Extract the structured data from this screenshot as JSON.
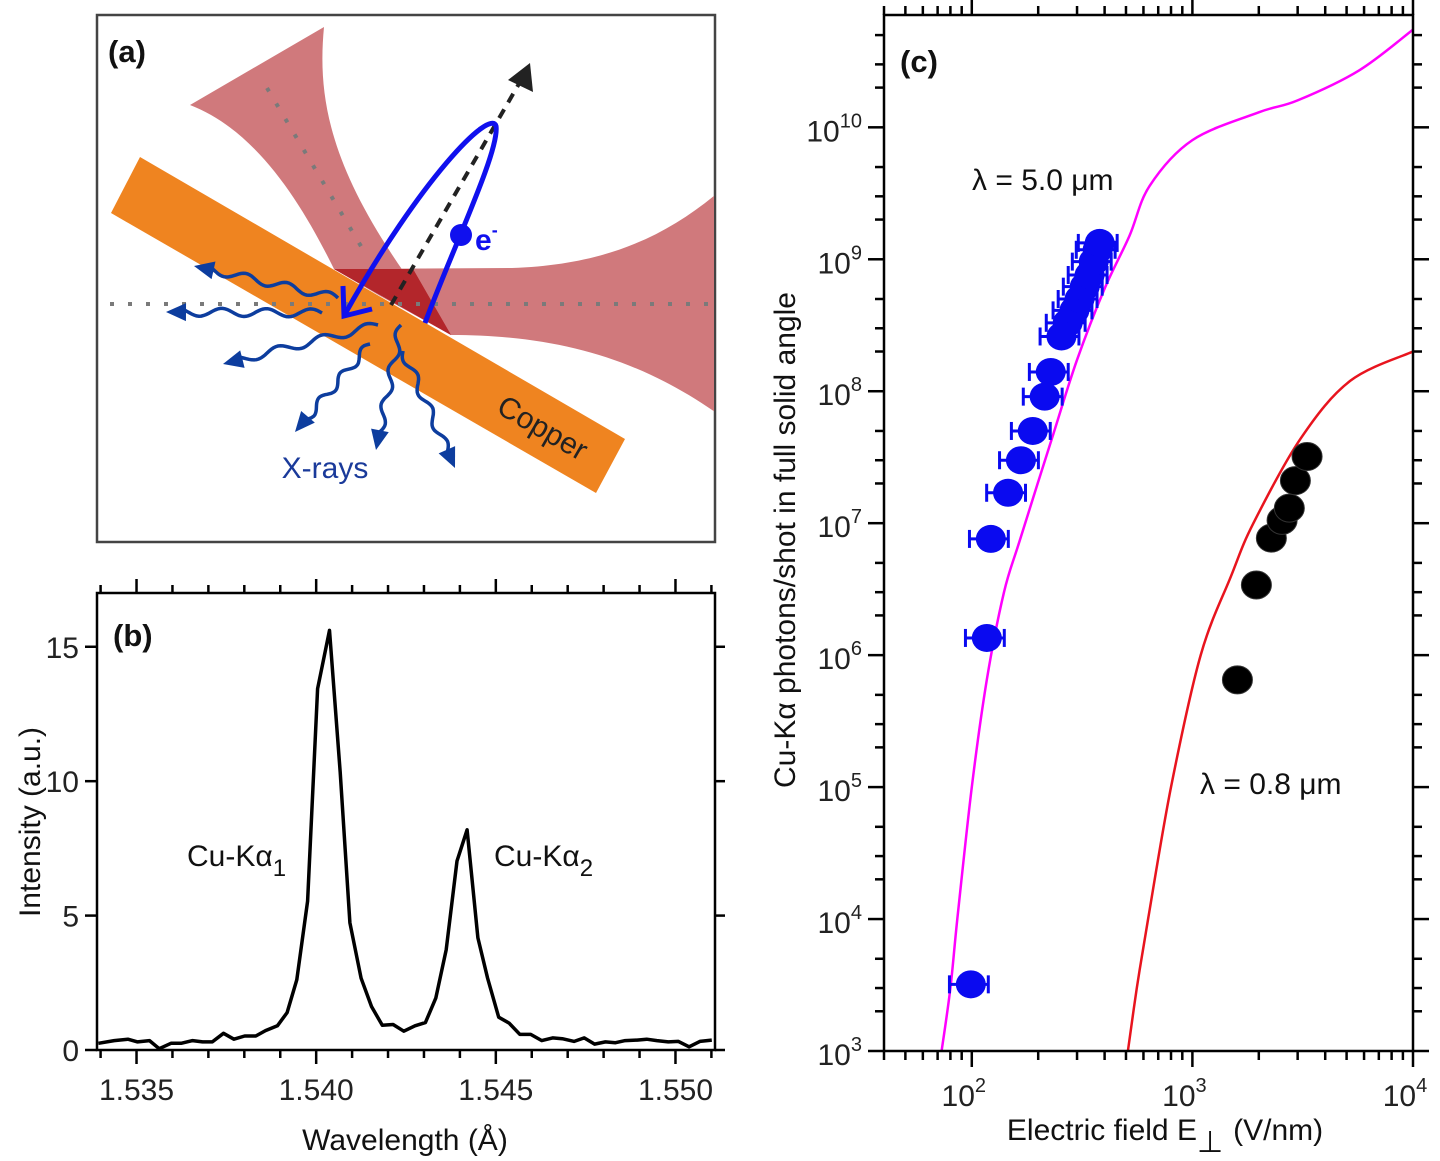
{
  "panel_a": {
    "label": "(a)",
    "copper_label": "Copper",
    "xrays_label": "X-rays",
    "electron_label": "e",
    "electron_charge": "-",
    "colors": {
      "laser": "#d0797c",
      "overlap": "#b3262b",
      "copper": "#ef8420",
      "electron": "#1010ee",
      "xrays": "#0d3d9e",
      "dotted": "#7a7a7a"
    }
  },
  "chart_data": [
    {
      "panel_label": "(b)",
      "type": "line",
      "xlabel": "Wavelength (Å)",
      "ylabel": "Intensity (a.u.)",
      "xlim": [
        1.5339,
        1.5511
      ],
      "ylim": [
        0,
        17
      ],
      "xticks": [
        "1.535",
        "1.540",
        "1.545",
        "1.550"
      ],
      "yticks": [
        "0",
        "5",
        "10",
        "15"
      ],
      "grid": false,
      "color": "#000000",
      "annotations": [
        {
          "base": "Cu-Kα",
          "sub": "1"
        },
        {
          "base": "Cu-Kα",
          "sub": "2"
        }
      ],
      "x": [
        1.53394,
        1.53438,
        1.53476,
        1.53503,
        1.53536,
        1.53563,
        1.53596,
        1.53624,
        1.53656,
        1.53684,
        1.53711,
        1.53742,
        1.53771,
        1.53801,
        1.53832,
        1.53859,
        1.53892,
        1.53919,
        1.53946,
        1.53976,
        1.54004,
        1.54037,
        1.54067,
        1.54094,
        1.54125,
        1.54154,
        1.54184,
        1.54214,
        1.54244,
        1.54275,
        1.54304,
        1.54333,
        1.54362,
        1.54392,
        1.5442,
        1.5445,
        1.54477,
        1.54508,
        1.54537,
        1.54567,
        1.54597,
        1.54628,
        1.54658,
        1.54685,
        1.54718,
        1.54746,
        1.54775,
        1.54805,
        1.54833,
        1.5486,
        1.54893,
        1.5492,
        1.54948,
        1.5498,
        1.55008,
        1.55038,
        1.55068,
        1.55101
      ],
      "y": [
        0.25,
        0.35,
        0.4,
        0.3,
        0.35,
        0.05,
        0.25,
        0.25,
        0.35,
        0.3,
        0.3,
        0.62,
        0.4,
        0.52,
        0.52,
        0.72,
        0.9,
        1.39,
        2.61,
        5.54,
        13.44,
        15.61,
        10.33,
        4.73,
        2.67,
        1.62,
        0.92,
        0.95,
        0.7,
        0.9,
        1.02,
        1.93,
        3.73,
        7.03,
        8.19,
        4.17,
        2.67,
        1.22,
        1.0,
        0.58,
        0.58,
        0.35,
        0.45,
        0.42,
        0.32,
        0.45,
        0.22,
        0.3,
        0.27,
        0.35,
        0.37,
        0.4,
        0.35,
        0.3,
        0.32,
        0.12,
        0.32,
        0.37
      ]
    },
    {
      "panel_label": "(c)",
      "type": "scatter",
      "xscale": "log",
      "yscale": "log",
      "xlabel": "Electric field E",
      "xlabel_subscript": "⊥",
      "xlabel_unit": "(V/nm)",
      "ylabel": "Cu-Kα photons/shot in full solid angle",
      "xlim": [
        40,
        10000
      ],
      "ylim": [
        1000,
        71000000000.0
      ],
      "xticks": [
        {
          "base": "10",
          "exp": "2",
          "value": 100
        },
        {
          "base": "10",
          "exp": "3",
          "value": 1000
        },
        {
          "base": "10",
          "exp": "4",
          "value": 10000
        }
      ],
      "yticks": [
        {
          "base": "10",
          "exp": "3",
          "value": 1000.0
        },
        {
          "base": "10",
          "exp": "4",
          "value": 10000.0
        },
        {
          "base": "10",
          "exp": "5",
          "value": 100000.0
        },
        {
          "base": "10",
          "exp": "6",
          "value": 1000000.0
        },
        {
          "base": "10",
          "exp": "7",
          "value": 10000000.0
        },
        {
          "base": "10",
          "exp": "8",
          "value": 100000000.0
        },
        {
          "base": "10",
          "exp": "9",
          "value": 1000000000.0
        },
        {
          "base": "10",
          "exp": "10",
          "value": 10000000000.0
        }
      ],
      "grid": false,
      "curves": [
        {
          "name": "λ = 5.0 μm",
          "color": "#ff00ff",
          "label_color": "#e5178f",
          "points": [
            [
              73,
              1000.0
            ],
            [
              80,
              3000.0
            ],
            [
              86,
              10000.0
            ],
            [
              100,
              100000.0
            ],
            [
              117,
              650000.0
            ],
            [
              140,
              3000000.0
            ],
            [
              165,
              7400000.0
            ],
            [
              232,
              45000000.0
            ],
            [
              299,
              170000000.0
            ],
            [
              400,
              600000000.0
            ],
            [
              518,
              1500000000.0
            ],
            [
              640,
              3600000000.0
            ],
            [
              1000,
              8000000000.0
            ],
            [
              2000,
              13000000000.0
            ],
            [
              3000,
              16000000000.0
            ],
            [
              5700,
              27000000000.0
            ],
            [
              10000,
              55000000000.0
            ]
          ]
        },
        {
          "name": "λ = 0.8 μm",
          "color": "#e8141e",
          "label_color": "#e8141e",
          "points": [
            [
              510,
              1000.0
            ],
            [
              560,
              3000.0
            ],
            [
              630,
              10000.0
            ],
            [
              800,
              100000.0
            ],
            [
              1090,
              1000000.0
            ],
            [
              1500,
              4000000.0
            ],
            [
              1890,
              10000000.0
            ],
            [
              3100,
              44000000.0
            ],
            [
              5200,
              120000000.0
            ],
            [
              10000,
              200000000.0
            ]
          ]
        }
      ],
      "series": [
        {
          "color": "#0a0af0",
          "x_error_relative": 0.2,
          "points": [
            [
              99,
              3200.0
            ],
            [
              117,
              1350000.0
            ],
            [
              122,
              7600000.0
            ],
            [
              146,
              17000000.0
            ],
            [
              167,
              30000000.0
            ],
            [
              189,
              50000000.0
            ],
            [
              214,
              91000000.0
            ],
            [
              228,
              140000000.0
            ],
            [
              255,
              260000000.0
            ],
            [
              272,
              330000000.0
            ],
            [
              292,
              410000000.0
            ],
            [
              308,
              500000000.0
            ],
            [
              325,
              620000000.0
            ],
            [
              342,
              760000000.0
            ],
            [
              357,
              960000000.0
            ],
            [
              372,
              1180000000.0
            ],
            [
              380,
              1330000000.0
            ]
          ]
        },
        {
          "color": "#000000",
          "points": [
            [
              1600,
              650000.0
            ],
            [
              1950,
              3400000.0
            ],
            [
              2280,
              7700000.0
            ],
            [
              2550,
              10500000.0
            ],
            [
              2750,
              13000000.0
            ],
            [
              2930,
              21000000.0
            ],
            [
              3310,
              32000000.0
            ]
          ]
        }
      ]
    }
  ]
}
